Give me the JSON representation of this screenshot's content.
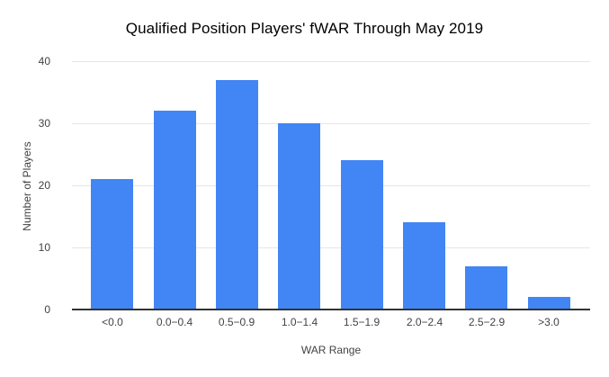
{
  "chart_data": {
    "type": "bar",
    "title": "Qualified Position Players' fWAR Through May 2019",
    "xlabel": "WAR Range",
    "ylabel": "Number of Players",
    "categories": [
      "<0.0",
      "0.0−0.4",
      "0.5−0.9",
      "1.0−1.4",
      "1.5−1.9",
      "2.0−2.4",
      "2.5−2.9",
      ">3.0"
    ],
    "values": [
      21,
      32,
      37,
      30,
      24,
      14,
      7,
      2
    ],
    "ylim": [
      0,
      40
    ],
    "yticks": [
      0,
      10,
      20,
      30,
      40
    ],
    "grid": true,
    "legend": "none",
    "colors": {
      "bar": "#4285f4",
      "gridline": "#e6e6e6",
      "axis_line": "#333333",
      "tick_text": "#424242",
      "title_text": "#000000",
      "background": "#ffffff"
    }
  }
}
